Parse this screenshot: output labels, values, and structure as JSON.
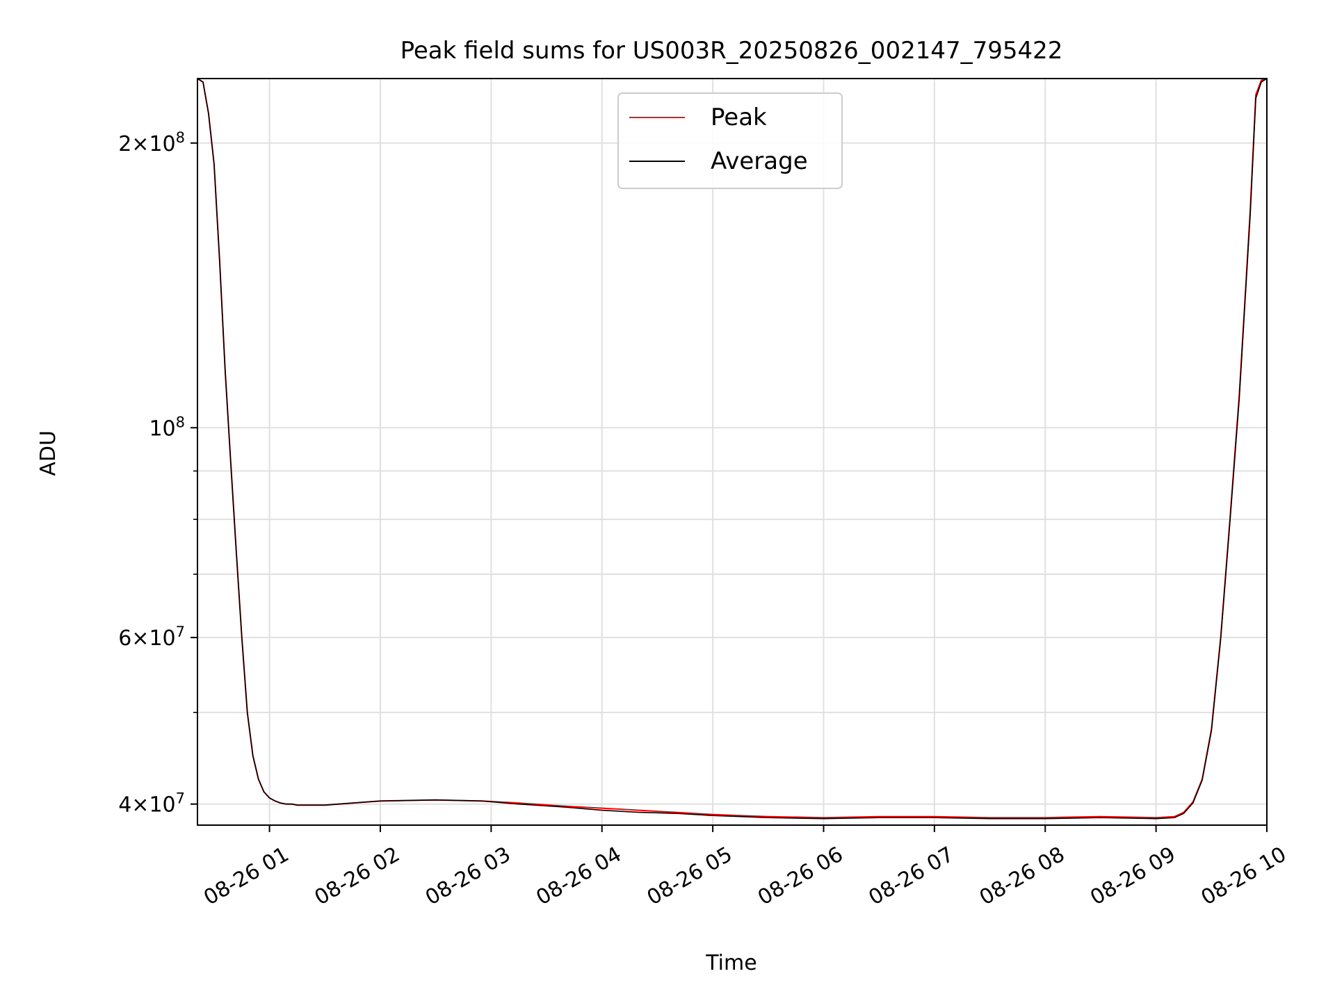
{
  "chart_data": {
    "type": "line",
    "title": "Peak field sums for US003R_20250826_002147_795422",
    "xlabel": "Time",
    "ylabel": "ADU",
    "x_scale": "time",
    "y_scale": "log",
    "xlim": [
      "2025-08-26 00:21",
      "2025-08-26 10:00"
    ],
    "ylim": [
      38000000,
      234000000
    ],
    "grid": true,
    "legend_position": "top-center",
    "x_ticks": [
      {
        "x": "2025-08-26 01:00",
        "label": "08-26 01"
      },
      {
        "x": "2025-08-26 02:00",
        "label": "08-26 02"
      },
      {
        "x": "2025-08-26 03:00",
        "label": "08-26 03"
      },
      {
        "x": "2025-08-26 04:00",
        "label": "08-26 04"
      },
      {
        "x": "2025-08-26 05:00",
        "label": "08-26 05"
      },
      {
        "x": "2025-08-26 06:00",
        "label": "08-26 06"
      },
      {
        "x": "2025-08-26 07:00",
        "label": "08-26 07"
      },
      {
        "x": "2025-08-26 08:00",
        "label": "08-26 08"
      },
      {
        "x": "2025-08-26 09:00",
        "label": "08-26 09"
      },
      {
        "x": "2025-08-26 10:00",
        "label": "08-26 10"
      }
    ],
    "y_ticks_major": [
      {
        "y": 40000000,
        "coef": "4",
        "exp": "7"
      },
      {
        "y": 60000000,
        "coef": "6",
        "exp": "7"
      },
      {
        "y": 100000000,
        "coef": "",
        "exp": "8"
      },
      {
        "y": 200000000,
        "coef": "2",
        "exp": "8"
      }
    ],
    "y_ticks_minor": [
      50000000,
      70000000,
      80000000,
      90000000
    ],
    "series": [
      {
        "name": "Peak",
        "color": "#ff0000",
        "x": [
          "2025-08-26 00:21",
          "2025-08-26 00:24",
          "2025-08-26 00:27",
          "2025-08-26 00:30",
          "2025-08-26 00:33",
          "2025-08-26 00:36",
          "2025-08-26 00:39",
          "2025-08-26 00:42",
          "2025-08-26 00:45",
          "2025-08-26 00:48",
          "2025-08-26 00:51",
          "2025-08-26 00:54",
          "2025-08-26 00:57",
          "2025-08-26 01:00",
          "2025-08-26 01:03",
          "2025-08-26 01:06",
          "2025-08-26 01:09",
          "2025-08-26 01:12",
          "2025-08-26 01:15",
          "2025-08-26 01:30",
          "2025-08-26 01:45",
          "2025-08-26 02:00",
          "2025-08-26 02:30",
          "2025-08-26 02:55",
          "2025-08-26 03:15",
          "2025-08-26 03:40",
          "2025-08-26 04:00",
          "2025-08-26 04:20",
          "2025-08-26 04:40",
          "2025-08-26 05:00",
          "2025-08-26 05:30",
          "2025-08-26 06:00",
          "2025-08-26 06:30",
          "2025-08-26 07:00",
          "2025-08-26 07:30",
          "2025-08-26 08:00",
          "2025-08-26 08:30",
          "2025-08-26 09:00",
          "2025-08-26 09:10",
          "2025-08-26 09:15",
          "2025-08-26 09:20",
          "2025-08-26 09:25",
          "2025-08-26 09:30",
          "2025-08-26 09:35",
          "2025-08-26 09:40",
          "2025-08-26 09:45",
          "2025-08-26 09:48",
          "2025-08-26 09:51",
          "2025-08-26 09:54",
          "2025-08-26 09:57",
          "2025-08-26 10:00"
        ],
        "values": [
          234000000,
          232000000,
          215000000,
          190000000,
          150000000,
          115000000,
          92000000,
          74000000,
          60000000,
          50000000,
          45000000,
          42500000,
          41200000,
          40600000,
          40300000,
          40100000,
          40000000,
          40000000,
          39900000,
          39900000,
          40100000,
          40300000,
          40400000,
          40300000,
          40100000,
          39800000,
          39600000,
          39400000,
          39200000,
          39000000,
          38800000,
          38700000,
          38800000,
          38800000,
          38700000,
          38700000,
          38800000,
          38700000,
          38800000,
          39200000,
          40200000,
          42500000,
          48000000,
          60000000,
          80000000,
          108000000,
          135000000,
          170000000,
          225000000,
          233000000,
          234000000
        ]
      },
      {
        "name": "Average",
        "color": "#000000",
        "x": [
          "2025-08-26 00:21",
          "2025-08-26 00:24",
          "2025-08-26 00:27",
          "2025-08-26 00:30",
          "2025-08-26 00:33",
          "2025-08-26 00:36",
          "2025-08-26 00:39",
          "2025-08-26 00:42",
          "2025-08-26 00:45",
          "2025-08-26 00:48",
          "2025-08-26 00:51",
          "2025-08-26 00:54",
          "2025-08-26 00:57",
          "2025-08-26 01:00",
          "2025-08-26 01:03",
          "2025-08-26 01:06",
          "2025-08-26 01:09",
          "2025-08-26 01:12",
          "2025-08-26 01:15",
          "2025-08-26 01:30",
          "2025-08-26 01:45",
          "2025-08-26 02:00",
          "2025-08-26 02:30",
          "2025-08-26 02:55",
          "2025-08-26 03:15",
          "2025-08-26 03:40",
          "2025-08-26 04:00",
          "2025-08-26 04:20",
          "2025-08-26 04:40",
          "2025-08-26 05:00",
          "2025-08-26 05:30",
          "2025-08-26 06:00",
          "2025-08-26 06:30",
          "2025-08-26 07:00",
          "2025-08-26 07:30",
          "2025-08-26 08:00",
          "2025-08-26 08:30",
          "2025-08-26 09:00",
          "2025-08-26 09:10",
          "2025-08-26 09:15",
          "2025-08-26 09:20",
          "2025-08-26 09:25",
          "2025-08-26 09:30",
          "2025-08-26 09:35",
          "2025-08-26 09:40",
          "2025-08-26 09:45",
          "2025-08-26 09:48",
          "2025-08-26 09:51",
          "2025-08-26 09:54",
          "2025-08-26 09:57",
          "2025-08-26 10:00"
        ],
        "values": [
          234000000,
          232000000,
          215000000,
          190000000,
          150000000,
          115000000,
          92000000,
          74000000,
          60000000,
          50000000,
          45000000,
          42500000,
          41200000,
          40600000,
          40300000,
          40100000,
          40000000,
          40000000,
          39900000,
          39900000,
          40100000,
          40300000,
          40400000,
          40300000,
          40000000,
          39700000,
          39400000,
          39200000,
          39100000,
          38900000,
          38700000,
          38600000,
          38700000,
          38700000,
          38600000,
          38600000,
          38700000,
          38600000,
          38700000,
          39100000,
          40100000,
          42400000,
          47800000,
          59800000,
          79500000,
          107000000,
          134000000,
          168000000,
          223000000,
          232000000,
          234000000
        ]
      }
    ]
  }
}
